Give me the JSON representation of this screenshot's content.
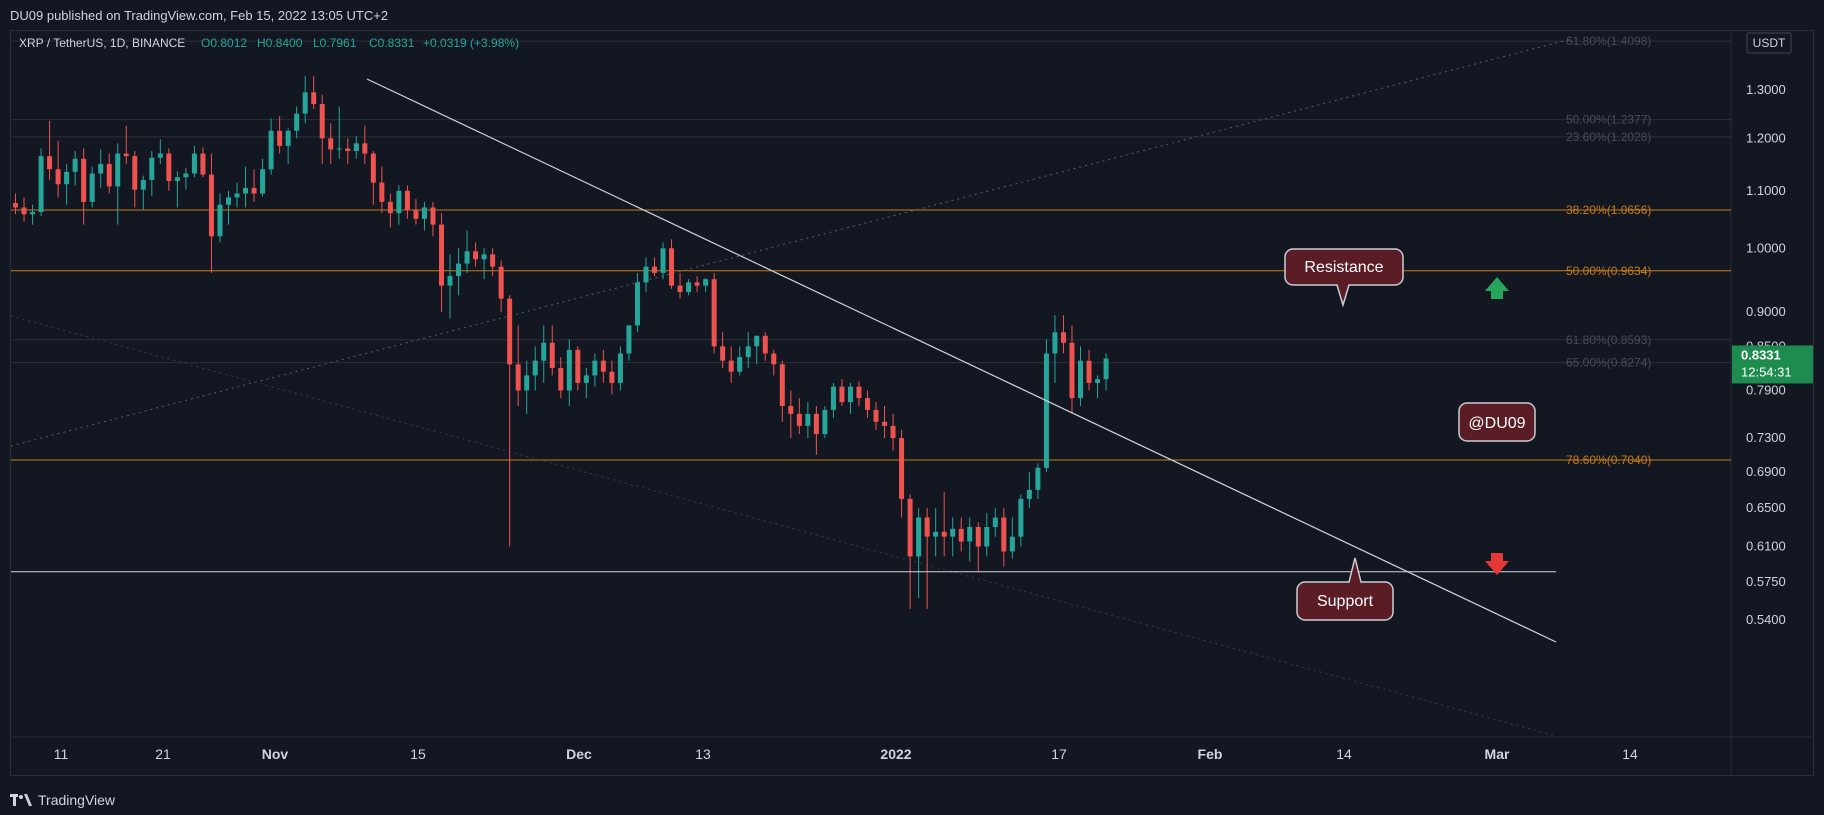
{
  "header": {
    "published": "DU09 published on TradingView.com, Feb 15, 2022 13:05 UTC+2"
  },
  "footer": {
    "brand": "TradingView"
  },
  "colors": {
    "background": "#131722",
    "up": "#26a69a",
    "down": "#ef5350",
    "fib": "#c77d12",
    "trendline": "#d1d4dc",
    "price_badge": "#1e8c4f"
  },
  "chart_data": {
    "type": "candlestick",
    "symbol": "XRP / TetherUS, 1D, BINANCE",
    "ohlc_legend": {
      "open": "O0.8012",
      "high": "H0.8400",
      "low": "L0.7961",
      "close": "C0.8331",
      "change": "+0.0319 (+3.98%)"
    },
    "currency": "USDT",
    "y_axis_ticks": [
      "1.3000",
      "1.2000",
      "1.1000",
      "1.0000",
      "0.9000",
      "0.8500",
      "0.7900",
      "0.7300",
      "0.6900",
      "0.6500",
      "0.6100",
      "0.5750",
      "0.5400"
    ],
    "x_axis_ticks": [
      "11",
      "21",
      "Nov",
      "15",
      "Dec",
      "13",
      "2022",
      "17",
      "Feb",
      "14",
      "Mar",
      "14"
    ],
    "last_price": "0.8331",
    "countdown": "12:54:31",
    "fib_levels": [
      {
        "label": "61.80%(1.4098)",
        "value": 1.4098,
        "faint": true
      },
      {
        "label": "50.00%(1.2377)",
        "value": 1.2377,
        "faint": true
      },
      {
        "label": "23.60%(1.2028)",
        "value": 1.2028,
        "faint": true
      },
      {
        "label": "38.20%(1.0656)",
        "value": 1.0656,
        "faint": false
      },
      {
        "label": "50.00%(0.9634)",
        "value": 0.9634,
        "faint": false
      },
      {
        "label": "61.80%(0.8593)",
        "value": 0.8593,
        "faint": true
      },
      {
        "label": "65.00%(0.8274)",
        "value": 0.8274,
        "faint": true
      },
      {
        "label": "78.60%(0.7040)",
        "value": 0.704,
        "faint": false
      }
    ],
    "support_line": 0.585,
    "annotations": {
      "resistance": "Resistance",
      "support": "Support",
      "watermark": "@DU09"
    },
    "candles": [
      [
        1.078,
        1.095,
        1.058,
        1.07
      ],
      [
        1.07,
        1.088,
        1.045,
        1.058
      ],
      [
        1.058,
        1.075,
        1.04,
        1.062
      ],
      [
        1.062,
        1.18,
        1.055,
        1.165
      ],
      [
        1.165,
        1.235,
        1.12,
        1.14
      ],
      [
        1.14,
        1.195,
        1.088,
        1.112
      ],
      [
        1.112,
        1.15,
        1.075,
        1.135
      ],
      [
        1.135,
        1.175,
        1.11,
        1.16
      ],
      [
        1.16,
        1.18,
        1.04,
        1.08
      ],
      [
        1.08,
        1.145,
        1.07,
        1.132
      ],
      [
        1.132,
        1.178,
        1.105,
        1.15
      ],
      [
        1.15,
        1.17,
        1.095,
        1.108
      ],
      [
        1.108,
        1.19,
        1.04,
        1.17
      ],
      [
        1.17,
        1.225,
        1.15,
        1.165
      ],
      [
        1.165,
        1.175,
        1.07,
        1.102
      ],
      [
        1.102,
        1.128,
        1.065,
        1.12
      ],
      [
        1.12,
        1.175,
        1.09,
        1.162
      ],
      [
        1.162,
        1.198,
        1.15,
        1.17
      ],
      [
        1.17,
        1.18,
        1.1,
        1.118
      ],
      [
        1.118,
        1.136,
        1.07,
        1.125
      ],
      [
        1.125,
        1.142,
        1.102,
        1.132
      ],
      [
        1.132,
        1.185,
        1.125,
        1.17
      ],
      [
        1.17,
        1.182,
        1.125,
        1.13
      ],
      [
        1.13,
        1.17,
        0.96,
        1.02
      ],
      [
        1.02,
        1.095,
        1.01,
        1.075
      ],
      [
        1.075,
        1.1,
        1.04,
        1.088
      ],
      [
        1.088,
        1.115,
        1.07,
        1.095
      ],
      [
        1.095,
        1.145,
        1.07,
        1.105
      ],
      [
        1.105,
        1.14,
        1.08,
        1.095
      ],
      [
        1.095,
        1.16,
        1.09,
        1.14
      ],
      [
        1.14,
        1.24,
        1.13,
        1.215
      ],
      [
        1.215,
        1.245,
        1.17,
        1.185
      ],
      [
        1.185,
        1.22,
        1.15,
        1.215
      ],
      [
        1.215,
        1.265,
        1.2,
        1.25
      ],
      [
        1.25,
        1.33,
        1.23,
        1.295
      ],
      [
        1.295,
        1.33,
        1.26,
        1.27
      ],
      [
        1.27,
        1.29,
        1.15,
        1.2
      ],
      [
        1.2,
        1.23,
        1.15,
        1.178
      ],
      [
        1.178,
        1.265,
        1.16,
        1.18
      ],
      [
        1.18,
        1.2,
        1.15,
        1.175
      ],
      [
        1.175,
        1.205,
        1.16,
        1.19
      ],
      [
        1.19,
        1.225,
        1.15,
        1.17
      ],
      [
        1.17,
        1.175,
        1.075,
        1.115
      ],
      [
        1.115,
        1.145,
        1.06,
        1.08
      ],
      [
        1.08,
        1.095,
        1.035,
        1.06
      ],
      [
        1.06,
        1.11,
        1.04,
        1.1
      ],
      [
        1.1,
        1.11,
        1.05,
        1.065
      ],
      [
        1.065,
        1.085,
        1.04,
        1.05
      ],
      [
        1.05,
        1.08,
        1.03,
        1.07
      ],
      [
        1.07,
        1.08,
        1.02,
        1.04
      ],
      [
        1.04,
        1.06,
        0.9,
        0.94
      ],
      [
        0.94,
        0.99,
        0.89,
        0.955
      ],
      [
        0.955,
        1.0,
        0.925,
        0.975
      ],
      [
        0.975,
        1.03,
        0.96,
        0.995
      ],
      [
        0.995,
        1.01,
        0.97,
        0.982
      ],
      [
        0.982,
        1.0,
        0.95,
        0.99
      ],
      [
        0.99,
        1.0,
        0.955,
        0.97
      ],
      [
        0.97,
        0.98,
        0.9,
        0.92
      ],
      [
        0.92,
        0.925,
        0.61,
        0.825
      ],
      [
        0.825,
        0.88,
        0.77,
        0.79
      ],
      [
        0.79,
        0.83,
        0.76,
        0.81
      ],
      [
        0.81,
        0.85,
        0.79,
        0.83
      ],
      [
        0.83,
        0.88,
        0.8,
        0.855
      ],
      [
        0.855,
        0.88,
        0.81,
        0.82
      ],
      [
        0.82,
        0.835,
        0.78,
        0.79
      ],
      [
        0.79,
        0.86,
        0.77,
        0.845
      ],
      [
        0.845,
        0.85,
        0.79,
        0.8
      ],
      [
        0.8,
        0.82,
        0.78,
        0.81
      ],
      [
        0.81,
        0.84,
        0.795,
        0.83
      ],
      [
        0.83,
        0.845,
        0.8,
        0.815
      ],
      [
        0.815,
        0.83,
        0.785,
        0.8
      ],
      [
        0.8,
        0.85,
        0.79,
        0.84
      ],
      [
        0.84,
        0.88,
        0.83,
        0.88
      ],
      [
        0.88,
        0.96,
        0.87,
        0.945
      ],
      [
        0.945,
        0.985,
        0.93,
        0.97
      ],
      [
        0.97,
        0.985,
        0.955,
        0.96
      ],
      [
        0.96,
        1.01,
        0.95,
        1.0
      ],
      [
        1.0,
        1.015,
        0.935,
        0.94
      ],
      [
        0.94,
        0.96,
        0.92,
        0.93
      ],
      [
        0.93,
        0.95,
        0.925,
        0.945
      ],
      [
        0.945,
        0.955,
        0.93,
        0.94
      ],
      [
        0.94,
        0.952,
        0.93,
        0.95
      ],
      [
        0.95,
        0.96,
        0.84,
        0.85
      ],
      [
        0.85,
        0.87,
        0.82,
        0.83
      ],
      [
        0.83,
        0.85,
        0.8,
        0.815
      ],
      [
        0.815,
        0.85,
        0.81,
        0.835
      ],
      [
        0.835,
        0.87,
        0.82,
        0.85
      ],
      [
        0.85,
        0.865,
        0.825,
        0.865
      ],
      [
        0.865,
        0.87,
        0.83,
        0.84
      ],
      [
        0.84,
        0.845,
        0.81,
        0.825
      ],
      [
        0.825,
        0.83,
        0.75,
        0.77
      ],
      [
        0.77,
        0.79,
        0.73,
        0.76
      ],
      [
        0.76,
        0.78,
        0.735,
        0.745
      ],
      [
        0.745,
        0.775,
        0.73,
        0.76
      ],
      [
        0.76,
        0.77,
        0.71,
        0.735
      ],
      [
        0.735,
        0.77,
        0.73,
        0.765
      ],
      [
        0.765,
        0.8,
        0.755,
        0.795
      ],
      [
        0.795,
        0.805,
        0.77,
        0.775
      ],
      [
        0.775,
        0.8,
        0.76,
        0.795
      ],
      [
        0.795,
        0.802,
        0.77,
        0.78
      ],
      [
        0.78,
        0.79,
        0.755,
        0.765
      ],
      [
        0.765,
        0.775,
        0.74,
        0.75
      ],
      [
        0.75,
        0.77,
        0.73,
        0.745
      ],
      [
        0.745,
        0.76,
        0.715,
        0.73
      ],
      [
        0.73,
        0.74,
        0.64,
        0.66
      ],
      [
        0.66,
        0.665,
        0.55,
        0.6
      ],
      [
        0.6,
        0.65,
        0.56,
        0.64
      ],
      [
        0.64,
        0.65,
        0.55,
        0.62
      ],
      [
        0.62,
        0.65,
        0.6,
        0.625
      ],
      [
        0.625,
        0.668,
        0.6,
        0.62
      ],
      [
        0.62,
        0.64,
        0.6,
        0.628
      ],
      [
        0.628,
        0.64,
        0.605,
        0.615
      ],
      [
        0.615,
        0.64,
        0.595,
        0.63
      ],
      [
        0.63,
        0.635,
        0.585,
        0.61
      ],
      [
        0.61,
        0.645,
        0.6,
        0.63
      ],
      [
        0.63,
        0.65,
        0.62,
        0.64
      ],
      [
        0.64,
        0.65,
        0.59,
        0.605
      ],
      [
        0.605,
        0.64,
        0.598,
        0.62
      ],
      [
        0.62,
        0.665,
        0.61,
        0.66
      ],
      [
        0.66,
        0.69,
        0.65,
        0.67
      ],
      [
        0.67,
        0.7,
        0.66,
        0.695
      ],
      [
        0.695,
        0.86,
        0.69,
        0.84
      ],
      [
        0.84,
        0.895,
        0.8,
        0.87
      ],
      [
        0.87,
        0.895,
        0.84,
        0.855
      ],
      [
        0.855,
        0.88,
        0.76,
        0.78
      ],
      [
        0.78,
        0.85,
        0.77,
        0.83
      ],
      [
        0.83,
        0.845,
        0.79,
        0.8
      ],
      [
        0.8,
        0.81,
        0.78,
        0.805
      ],
      [
        0.805,
        0.84,
        0.79,
        0.833
      ]
    ]
  }
}
